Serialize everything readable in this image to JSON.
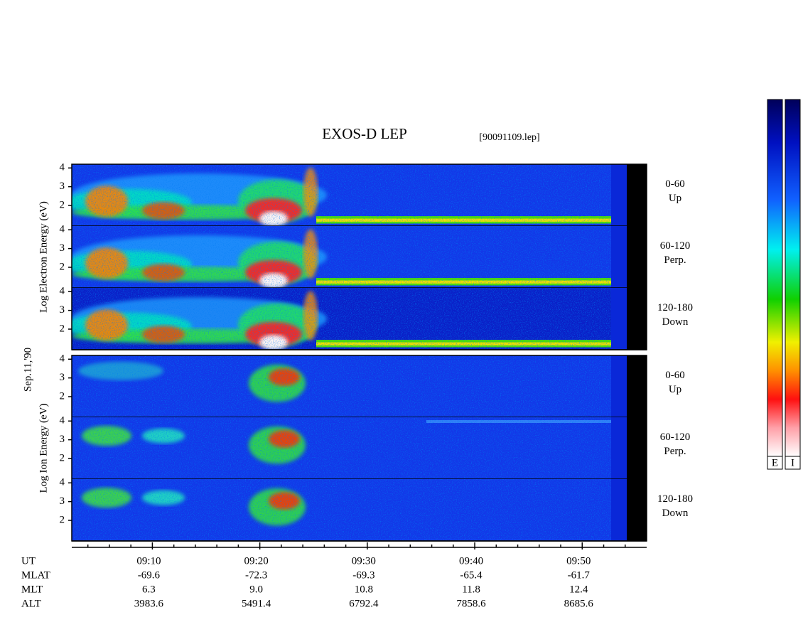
{
  "chart_data": {
    "type": "spectrogram",
    "title": "EXOS-D LEP",
    "subtitle": "[90091109.lep]",
    "date_label": "Sep.11,'90",
    "groups": [
      {
        "axis_label": "Log Electron Energy (eV)",
        "panels": [
          {
            "label": [
              "0-60",
              "Up"
            ]
          },
          {
            "label": [
              "60-120",
              "Perp."
            ]
          },
          {
            "label": [
              "120-180",
              "Down"
            ]
          }
        ]
      },
      {
        "axis_label": "Log Ion Energy (eV)",
        "panels": [
          {
            "label": [
              "0-60",
              "Up"
            ]
          },
          {
            "label": [
              "60-120",
              "Perp."
            ]
          },
          {
            "label": [
              "120-180",
              "Down"
            ]
          }
        ]
      }
    ],
    "ylim": [
      0.9,
      4.2
    ],
    "yticks": [
      2,
      3,
      4
    ],
    "xlim": [
      2.5,
      56
    ],
    "xticks": [
      {
        "value": 10,
        "label": "09:10"
      },
      {
        "value": 20,
        "label": "09:20"
      },
      {
        "value": 30,
        "label": "09:30"
      },
      {
        "value": 40,
        "label": "09:40"
      },
      {
        "value": 50,
        "label": "09:50"
      }
    ],
    "minor_xticks": [
      4,
      6,
      8,
      12,
      14,
      16,
      18,
      22,
      24,
      26,
      28,
      32,
      34,
      36,
      38,
      42,
      44,
      46,
      48,
      52,
      54
    ],
    "orbit_rows": [
      {
        "name": "UT",
        "values": []
      },
      {
        "name": "MLAT",
        "values": [
          "-69.6",
          "-72.3",
          "-69.3",
          "-65.4",
          "-61.7"
        ]
      },
      {
        "name": "MLT",
        "values": [
          "6.3",
          "9.0",
          "10.8",
          "11.8",
          "12.4"
        ]
      },
      {
        "name": "ALT",
        "values": [
          "3983.6",
          "5491.4",
          "6792.4",
          "7858.6",
          "8685.6"
        ]
      }
    ],
    "colorbars": [
      "E",
      "I"
    ]
  }
}
